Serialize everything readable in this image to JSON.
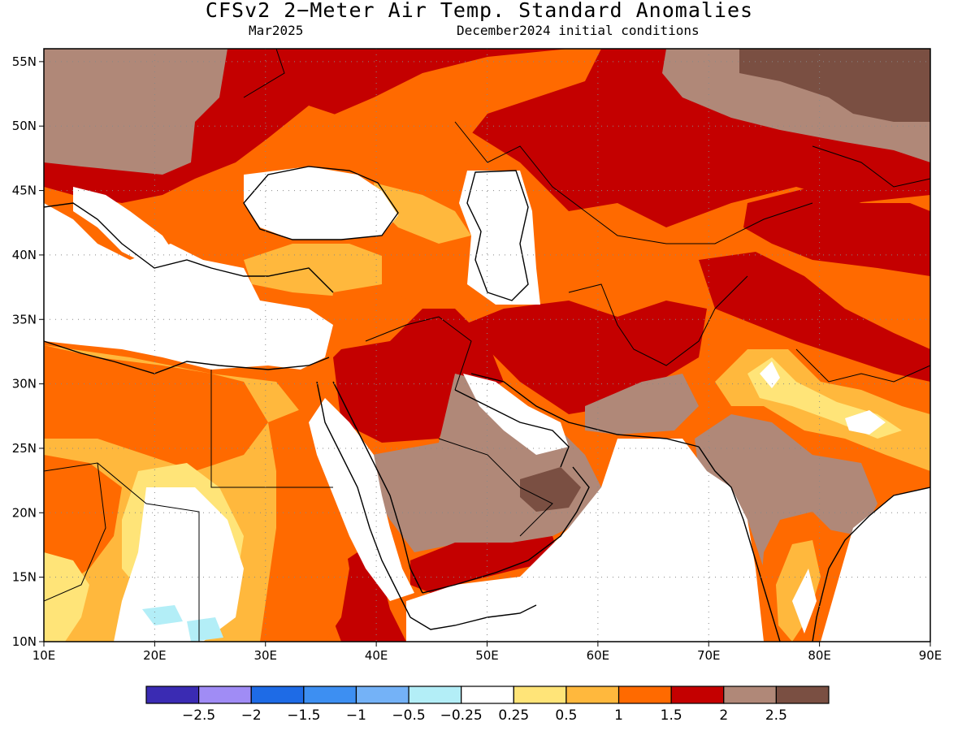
{
  "header": {
    "title": "CFSv2 2−Meter Air Temp. Standard Anomalies",
    "valid_month": "Mar2025",
    "init_conditions": "December2024 initial conditions"
  },
  "map": {
    "lon_range": [
      10,
      90
    ],
    "lat_range": [
      10,
      56
    ],
    "lon_ticks": [
      "10E",
      "20E",
      "30E",
      "40E",
      "50E",
      "60E",
      "70E",
      "80E",
      "90E"
    ],
    "lat_ticks": [
      "10N",
      "15N",
      "20N",
      "25N",
      "30N",
      "35N",
      "40N",
      "45N",
      "50N",
      "55N"
    ],
    "grid_lines": "dotted"
  },
  "legend": {
    "colors": [
      "#3a2bb3",
      "#a08cf5",
      "#1e6be6",
      "#3d8ff2",
      "#74b2f7",
      "#b3eef7",
      "#ffffff",
      "#ffe478",
      "#ffb83d",
      "#ff6a00",
      "#c40000",
      "#b08878",
      "#7a4f42"
    ],
    "labels": [
      "−2.5",
      "−2",
      "−1.5",
      "−1",
      "−0.5",
      "−0.25",
      "0.25",
      "0.5",
      "1",
      "1.5",
      "2",
      "2.5"
    ]
  },
  "anomaly_regions": [
    {
      "name": "Eastern Europe / European Russia",
      "level": "1.5 to 2",
      "color": "#c40000"
    },
    {
      "name": "Central Asia / Kazakhstan",
      "level": "1.5 to 2",
      "color": "#c40000"
    },
    {
      "name": "Siberia (north-east)",
      "level": "> 2.5",
      "color": "#7a4f42"
    },
    {
      "name": "Arabian Peninsula interior",
      "level": "2 to 2.5",
      "color": "#b08878"
    },
    {
      "name": "Central India",
      "level": "2 to 2.5",
      "color": "#b08878"
    },
    {
      "name": "Iran / Afghanistan",
      "level": "1 to 1.5",
      "color": "#ff6a00"
    },
    {
      "name": "Turkey / Anatolia",
      "level": "0.5 to 1",
      "color": "#ffb83d"
    },
    {
      "name": "North Africa / Sudan",
      "level": "0.25 to 1",
      "color": "#ffb83d"
    },
    {
      "name": "Mediterranean / Egypt / Libya",
      "level": "-0.25 to 0.25",
      "color": "#ffffff"
    },
    {
      "name": "Chad / Sudan border pocket",
      "level": "-0.5 to -0.25",
      "color": "#b3eef7"
    }
  ]
}
